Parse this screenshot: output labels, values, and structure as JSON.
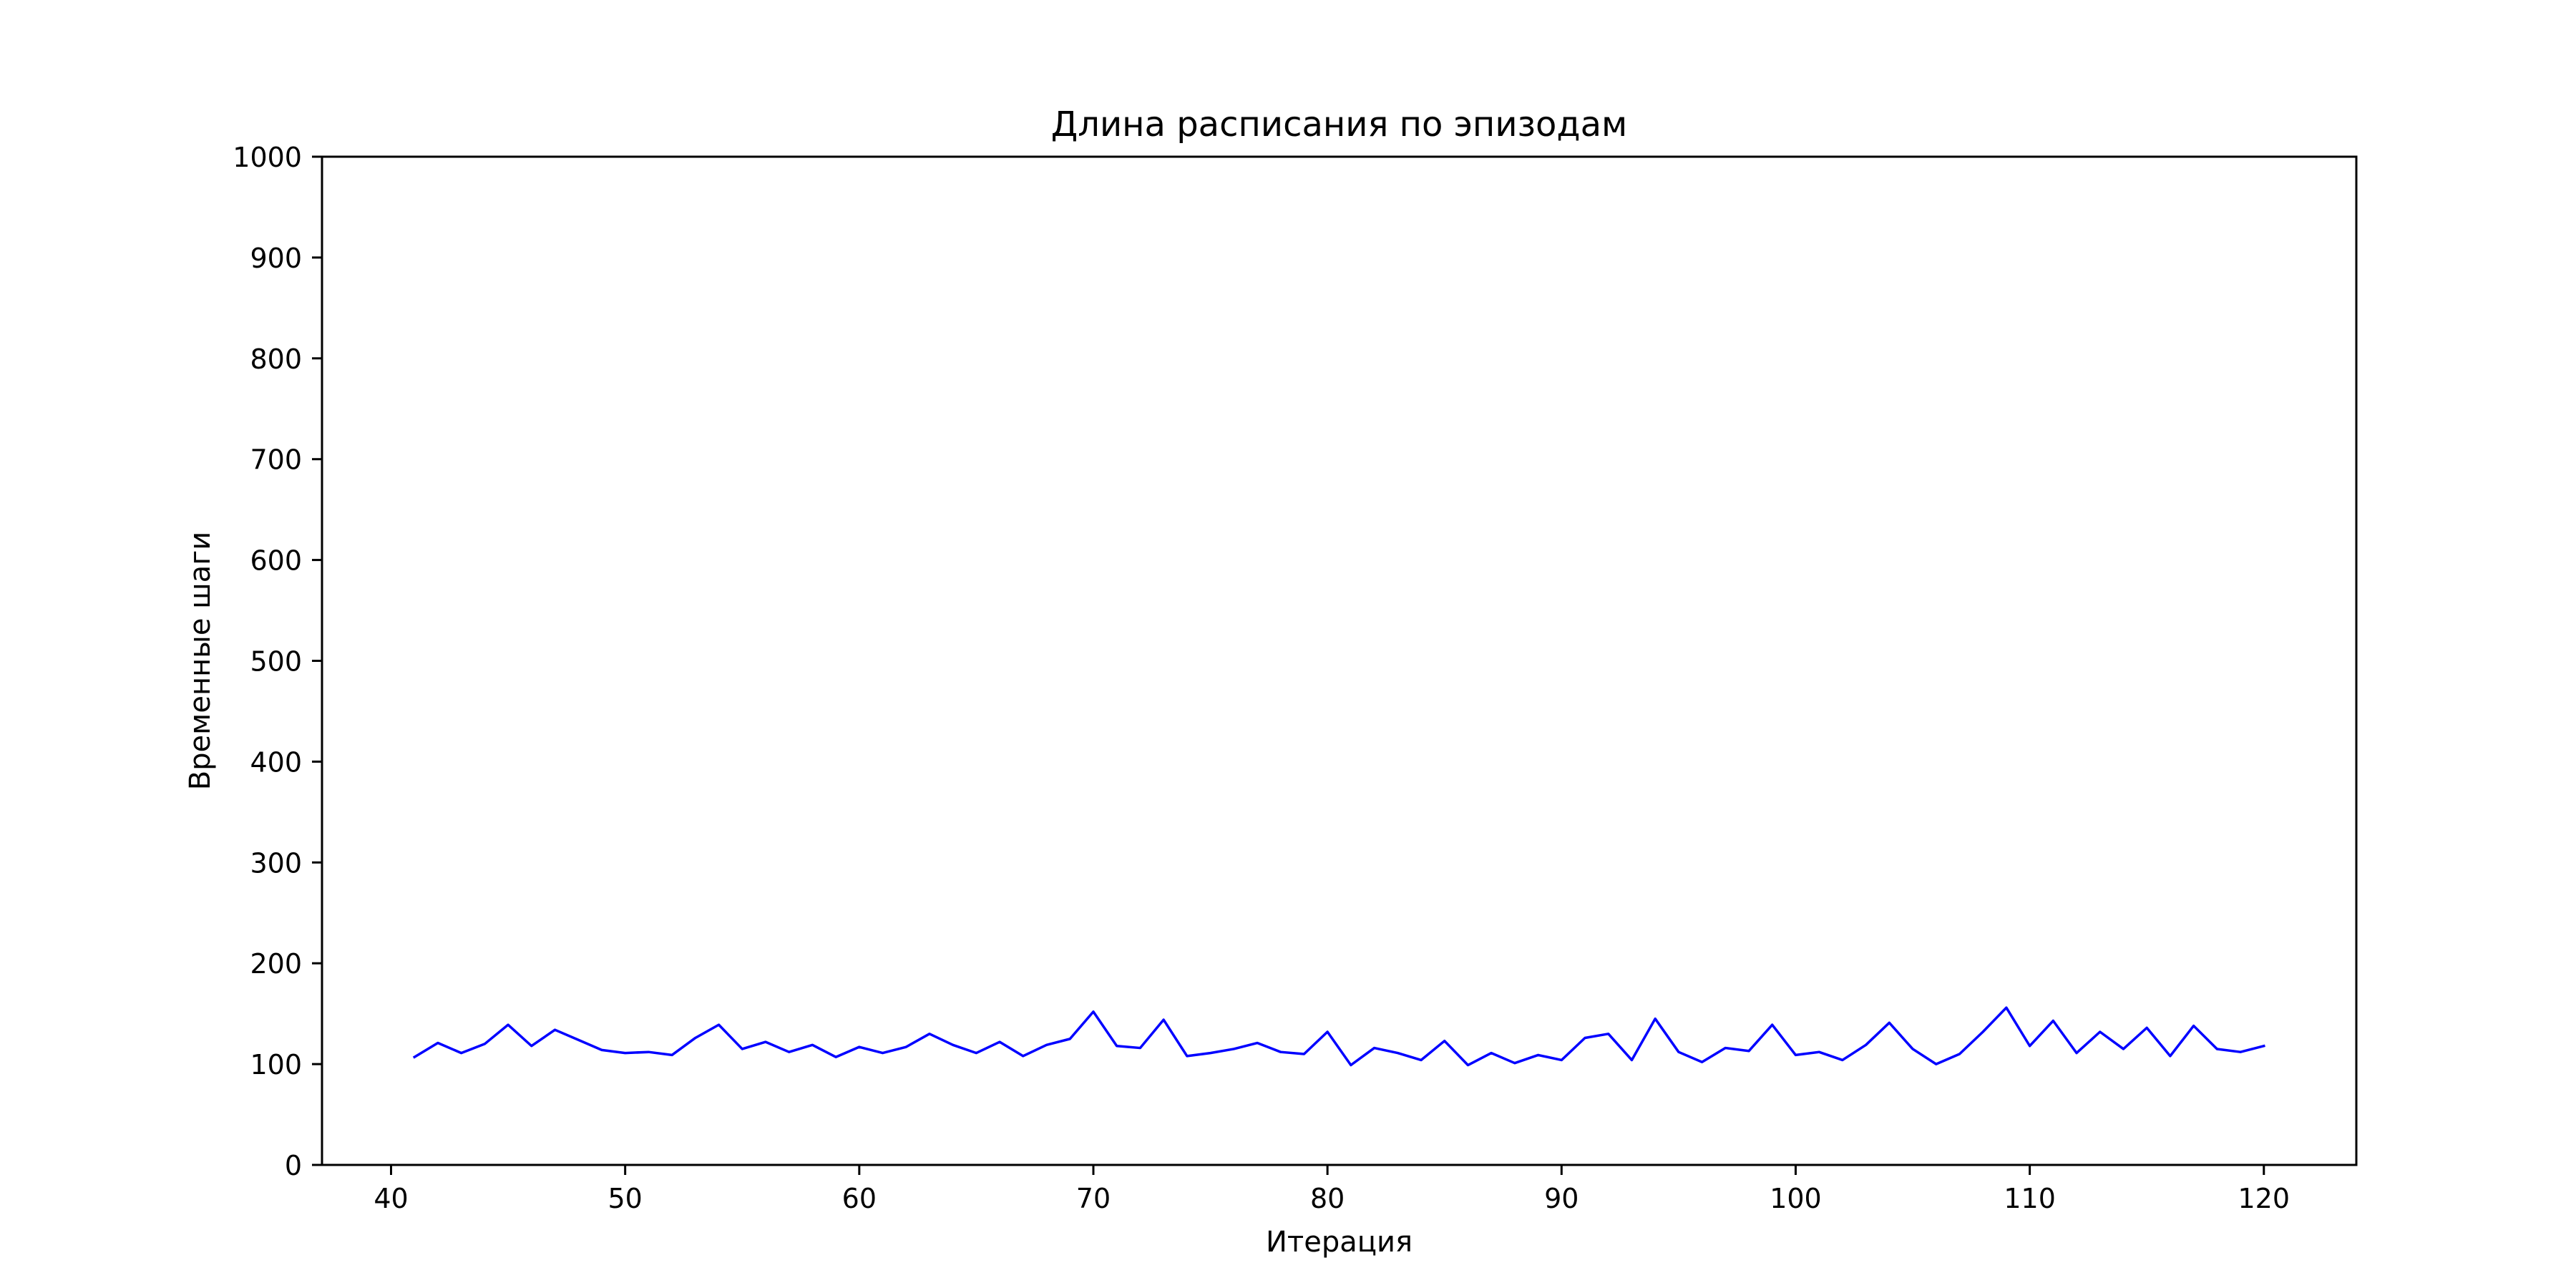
{
  "chart_data": {
    "type": "line",
    "title": "Длина расписания по эпизодам",
    "xlabel": "Итерация",
    "ylabel": "Временные шаги",
    "xlim": [
      37.05,
      123.95
    ],
    "ylim": [
      0,
      1000
    ],
    "xticks": [
      40,
      50,
      60,
      70,
      80,
      90,
      100,
      110,
      120
    ],
    "yticks": [
      0,
      100,
      200,
      300,
      400,
      500,
      600,
      700,
      800,
      900,
      1000
    ],
    "grid": false,
    "legend": "none",
    "series": [
      {
        "color": "#0000ff",
        "x": [
          41,
          42,
          43,
          44,
          45,
          46,
          47,
          48,
          49,
          50,
          51,
          52,
          53,
          54,
          55,
          56,
          57,
          58,
          59,
          60,
          61,
          62,
          63,
          64,
          65,
          66,
          67,
          68,
          69,
          70,
          71,
          72,
          73,
          74,
          75,
          76,
          77,
          78,
          79,
          80,
          81,
          82,
          83,
          84,
          85,
          86,
          87,
          88,
          89,
          90,
          91,
          92,
          93,
          94,
          95,
          96,
          97,
          98,
          99,
          100,
          101,
          102,
          103,
          104,
          105,
          106,
          107,
          108,
          109,
          110,
          111,
          112,
          113,
          114,
          115,
          116,
          117,
          118,
          119,
          120
        ],
        "values": [
          107,
          121,
          111,
          120,
          139,
          118,
          134,
          124,
          114,
          111,
          112,
          109,
          126,
          139,
          115,
          122,
          112,
          119,
          107,
          117,
          111,
          117,
          130,
          119,
          111,
          122,
          108,
          119,
          125,
          152,
          118,
          116,
          144,
          108,
          111,
          115,
          121,
          112,
          110,
          132,
          99,
          116,
          111,
          104,
          123,
          99,
          111,
          101,
          109,
          104,
          126,
          130,
          104,
          145,
          112,
          102,
          116,
          113,
          139,
          109,
          112,
          104,
          119,
          141,
          115,
          100,
          110,
          132,
          156,
          118,
          143,
          111,
          132,
          115,
          136,
          108,
          138,
          115,
          112,
          118
        ]
      }
    ]
  }
}
